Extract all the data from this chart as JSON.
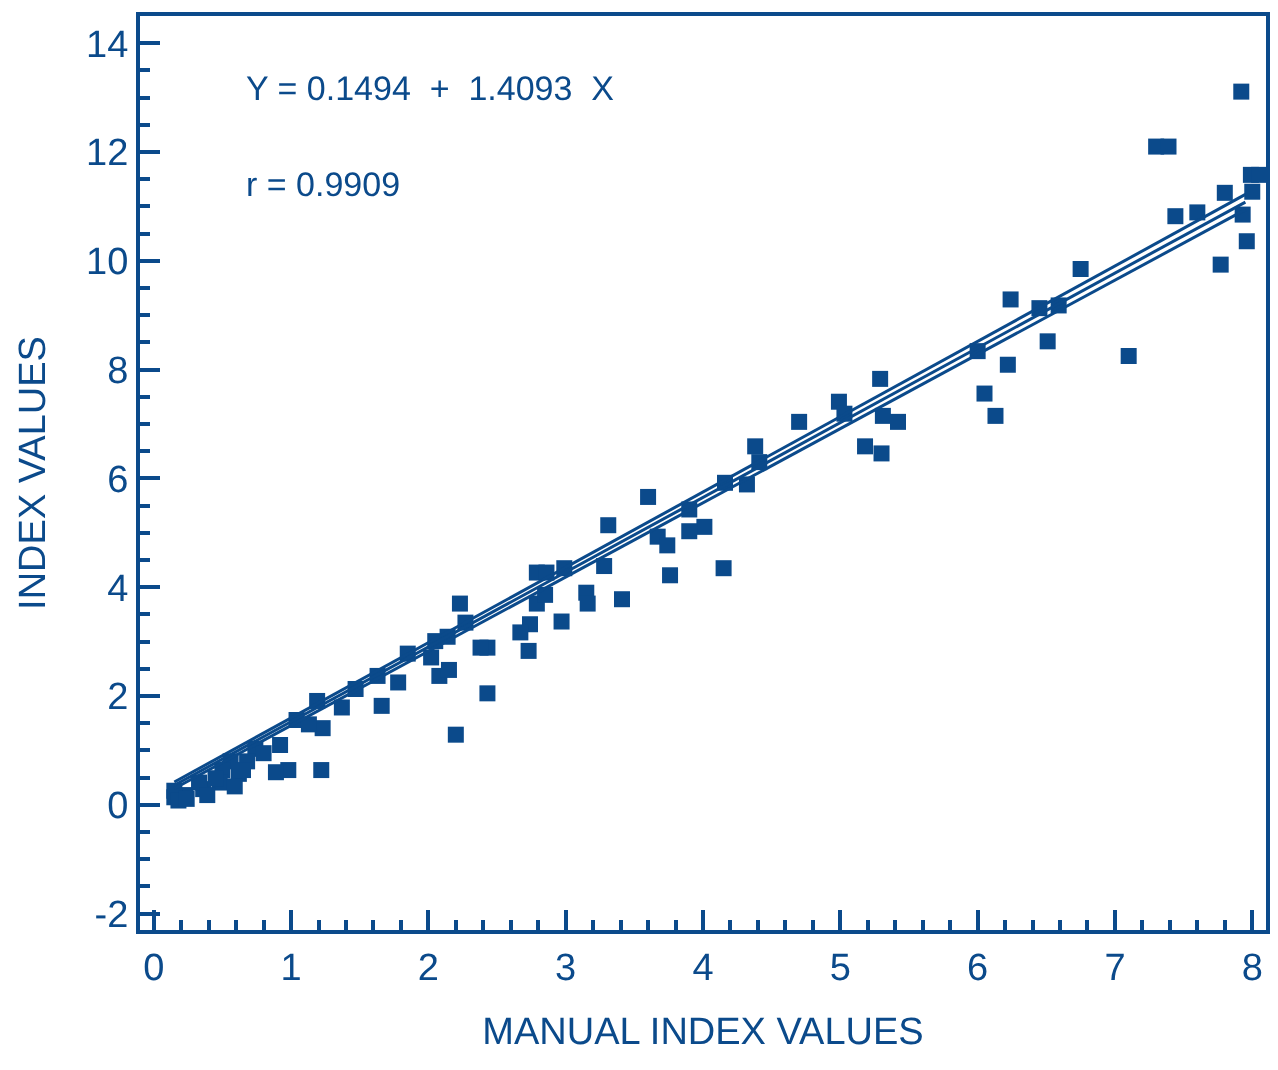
{
  "chart_data": {
    "type": "scatter",
    "xlabel": "MANUAL INDEX VALUES",
    "ylabel": "INDEX VALUES",
    "annotations": [
      "Y = 0.1494  +  1.4093  X",
      "r = 0.9909"
    ],
    "xlim": [
      -0.1,
      8.1
    ],
    "ylim": [
      -2.3,
      14.5
    ],
    "xticks": [
      0,
      {
        "value": 0.2,
        "label": null
      },
      {
        "value": 0.4,
        "label": null
      },
      {
        "value": 0.6,
        "label": null
      },
      {
        "value": 0.8,
        "label": null
      },
      1,
      {
        "value": 1.2,
        "label": null
      },
      {
        "value": 1.4,
        "label": null
      },
      {
        "value": 1.6,
        "label": null
      },
      {
        "value": 1.8,
        "label": null
      },
      2,
      {
        "value": 2.2,
        "label": null
      },
      {
        "value": 2.4,
        "label": null
      },
      {
        "value": 2.6,
        "label": null
      },
      {
        "value": 2.8,
        "label": null
      },
      3,
      {
        "value": 3.2,
        "label": null
      },
      {
        "value": 3.4,
        "label": null
      },
      {
        "value": 3.6,
        "label": null
      },
      {
        "value": 3.8,
        "label": null
      },
      4,
      {
        "value": 4.2,
        "label": null
      },
      {
        "value": 4.4,
        "label": null
      },
      {
        "value": 4.6,
        "label": null
      },
      {
        "value": 4.8,
        "label": null
      },
      5,
      {
        "value": 5.2,
        "label": null
      },
      {
        "value": 5.4,
        "label": null
      },
      {
        "value": 5.6,
        "label": null
      },
      {
        "value": 5.8,
        "label": null
      },
      6,
      {
        "value": 6.2,
        "label": null
      },
      {
        "value": 6.4,
        "label": null
      },
      {
        "value": 6.6,
        "label": null
      },
      {
        "value": 6.8,
        "label": null
      },
      7,
      {
        "value": 7.2,
        "label": null
      },
      {
        "value": 7.4,
        "label": null
      },
      {
        "value": 7.6,
        "label": null
      },
      {
        "value": 7.8,
        "label": null
      },
      8
    ],
    "yticks": [
      -2,
      {
        "value": -1.5,
        "label": null
      },
      {
        "value": -1,
        "label": null
      },
      {
        "value": -0.5,
        "label": null
      },
      0,
      {
        "value": 0.5,
        "label": null
      },
      {
        "value": 1,
        "label": null
      },
      {
        "value": 1.5,
        "label": null
      },
      2,
      {
        "value": 2.5,
        "label": null
      },
      {
        "value": 3,
        "label": null
      },
      {
        "value": 3.5,
        "label": null
      },
      4,
      {
        "value": 4.5,
        "label": null
      },
      {
        "value": 5,
        "label": null
      },
      {
        "value": 5.5,
        "label": null
      },
      6,
      {
        "value": 6.5,
        "label": null
      },
      {
        "value": 7,
        "label": null
      },
      {
        "value": 7.5,
        "label": null
      },
      8,
      {
        "value": 8.5,
        "label": null
      },
      {
        "value": 9,
        "label": null
      },
      {
        "value": 9.5,
        "label": null
      },
      10,
      {
        "value": 10.5,
        "label": null
      },
      {
        "value": 11,
        "label": null
      },
      {
        "value": 11.5,
        "label": null
      },
      12,
      {
        "value": 12.5,
        "label": null
      },
      {
        "value": 13,
        "label": null
      },
      {
        "value": 13.5,
        "label": null
      },
      14
    ],
    "series": [
      {
        "marker": "square",
        "color": "#0b4a8b",
        "x": [
          7.92,
          7.3,
          7.39,
          7.44,
          7.6,
          7.8,
          7.77,
          7.96,
          7.93,
          7.99,
          8.05,
          8.0,
          7.1,
          6.75,
          6.24,
          6.22,
          6.45,
          6.59,
          6.51,
          6.0,
          6.05,
          6.13,
          5.29,
          5.31,
          5.42,
          5.18,
          5.3,
          4.99,
          5.03,
          4.7,
          4.38,
          4.41,
          4.32,
          4.16,
          4.15,
          4.01,
          3.9,
          3.9,
          3.6,
          3.67,
          3.74,
          3.76,
          3.31,
          3.28,
          3.41,
          3.15,
          3.16,
          2.99,
          2.79,
          2.86,
          2.79,
          2.74,
          2.73,
          2.67,
          2.97,
          2.85,
          2.23,
          2.27,
          2.43,
          2.38,
          2.43,
          2.2,
          2.14,
          2.05,
          2.02,
          2.08,
          2.15,
          1.85,
          1.78,
          1.63,
          1.66,
          1.47,
          1.37,
          1.19,
          1.23,
          1.04,
          1.13,
          1.22,
          0.98,
          0.89,
          0.92,
          0.74,
          0.68,
          0.62,
          0.56,
          0.5,
          0.48,
          0.36,
          0.23,
          0.15,
          0.15,
          0.18,
          0.24,
          0.59,
          0.65,
          0.45,
          0.33,
          0.8,
          0.39
        ],
        "values": [
          13.11,
          12.1,
          12.1,
          10.82,
          10.89,
          11.25,
          9.93,
          10.36,
          10.85,
          11.58,
          11.58,
          11.27,
          8.25,
          9.85,
          9.29,
          8.09,
          9.13,
          9.18,
          8.52,
          8.34,
          7.56,
          7.15,
          7.83,
          7.15,
          7.04,
          6.59,
          6.46,
          7.41,
          7.19,
          7.04,
          6.59,
          6.3,
          5.89,
          5.92,
          4.35,
          5.11,
          5.43,
          5.03,
          5.66,
          4.93,
          4.77,
          4.22,
          5.14,
          4.39,
          3.78,
          3.9,
          3.7,
          4.35,
          4.27,
          4.27,
          3.7,
          3.32,
          2.83,
          3.17,
          3.37,
          3.86,
          3.7,
          3.35,
          2.89,
          2.89,
          2.05,
          1.29,
          3.09,
          3.01,
          2.71,
          2.37,
          2.48,
          2.78,
          2.25,
          2.37,
          1.82,
          2.13,
          1.79,
          1.91,
          1.41,
          1.56,
          1.48,
          0.64,
          0.64,
          0.6,
          1.1,
          1.03,
          0.8,
          0.57,
          0.8,
          0.64,
          0.41,
          0.29,
          0.18,
          0.14,
          0.26,
          0.08,
          0.11,
          0.34,
          0.64,
          0.49,
          0.41,
          0.95,
          0.18
        ]
      },
      {
        "type": "line",
        "color": "#0b4a8b",
        "x": [
          0.15,
          7.95
        ],
        "values": [
          0.42,
          11.22
        ]
      },
      {
        "type": "line",
        "color": "#0b4a8b",
        "x": [
          0.15,
          7.95
        ],
        "values": [
          0.36,
          11.08
        ]
      },
      {
        "type": "line",
        "color": "#0b4a8b",
        "x": [
          0.15,
          7.95
        ],
        "values": [
          0.3,
          10.94
        ]
      }
    ]
  }
}
